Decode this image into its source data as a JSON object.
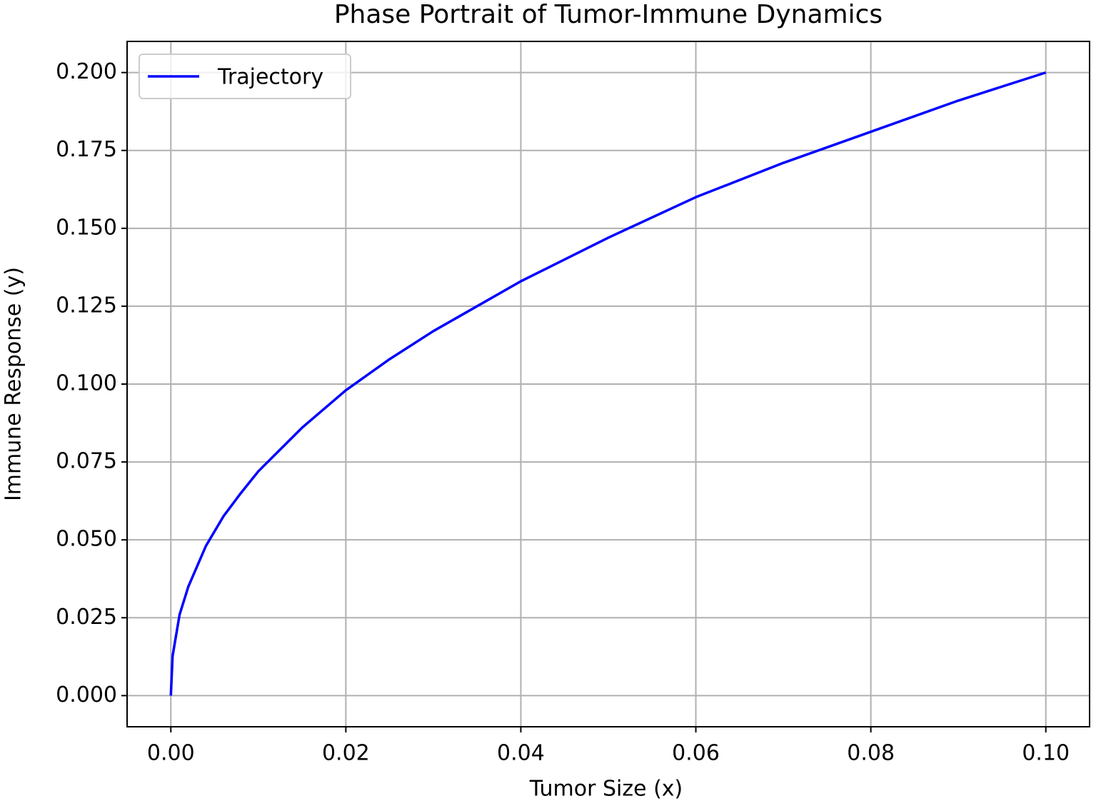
{
  "chart_data": {
    "type": "line",
    "title": "Phase Portrait of Tumor-Immune Dynamics",
    "x_label": "Tumor Size (x)",
    "y_label": "Immune Response (y)",
    "x": [
      0,
      0.0002,
      0.001,
      0.002,
      0.004,
      0.006,
      0.008,
      0.01,
      0.015,
      0.02,
      0.025,
      0.03,
      0.04,
      0.05,
      0.06,
      0.07,
      0.08,
      0.09,
      0.1
    ],
    "series": [
      {
        "name": "Trajectory",
        "color": "#0000ff",
        "values": [
          0,
          0.0127,
          0.026,
          0.035,
          0.048,
          0.0575,
          0.065,
          0.072,
          0.086,
          0.098,
          0.108,
          0.117,
          0.133,
          0.147,
          0.16,
          0.171,
          0.181,
          0.191,
          0.2
        ]
      }
    ],
    "xlim": [
      -0.005,
      0.105
    ],
    "ylim": [
      -0.01,
      0.21
    ],
    "xticks": [
      {
        "value": 0,
        "label": "0.00"
      },
      {
        "value": 0.02,
        "label": "0.02"
      },
      {
        "value": 0.04,
        "label": "0.04"
      },
      {
        "value": 0.06,
        "label": "0.06"
      },
      {
        "value": 0.08,
        "label": "0.08"
      },
      {
        "value": 0.1,
        "label": "0.10"
      }
    ],
    "yticks": [
      {
        "value": 0,
        "label": "0.000"
      },
      {
        "value": 0.025,
        "label": "0.025"
      },
      {
        "value": 0.05,
        "label": "0.050"
      },
      {
        "value": 0.075,
        "label": "0.075"
      },
      {
        "value": 0.1,
        "label": "0.100"
      },
      {
        "value": 0.125,
        "label": "0.125"
      },
      {
        "value": 0.15,
        "label": "0.150"
      },
      {
        "value": 0.175,
        "label": "0.175"
      },
      {
        "value": 0.2,
        "label": "0.200"
      }
    ],
    "grid": true,
    "legend": "upper left"
  }
}
